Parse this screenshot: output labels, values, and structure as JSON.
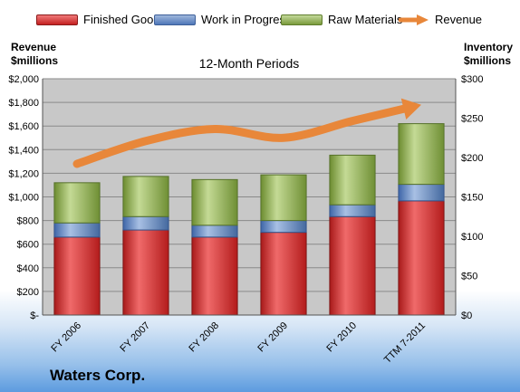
{
  "legend": {
    "finished_goods": "Finished Goods",
    "work_in_progress": "Work in Progress",
    "raw_materials": "Raw Materials",
    "revenue": "Revenue"
  },
  "left_axis_title": {
    "line1": "Revenue",
    "line2": "$millions"
  },
  "right_axis_title": {
    "line1": "Inventory",
    "line2": "$millions"
  },
  "company": "Waters Corp.",
  "colors": {
    "finished_goods": "#c42020",
    "work_in_progress": "#4f77b8",
    "raw_materials": "#7a9a3b",
    "revenue": "#e8873a",
    "plot_background": "#c8c8c8"
  },
  "chart_data": {
    "type": "bar",
    "stacked": true,
    "title": "12-Month Periods",
    "categories": [
      "FY 2006",
      "FY 2007",
      "FY 2008",
      "FY 2009",
      "FY 2010",
      "TTM 7-2011"
    ],
    "series": [
      {
        "name": "Finished Goods",
        "axis": "right",
        "values": [
          99,
          108,
          99,
          105,
          125,
          145
        ]
      },
      {
        "name": "Work in Progress",
        "axis": "right",
        "values": [
          18,
          17,
          15,
          15,
          15,
          21
        ]
      },
      {
        "name": "Raw Materials",
        "axis": "right",
        "values": [
          51,
          51,
          58,
          58,
          63,
          77
        ]
      },
      {
        "name": "Revenue",
        "type": "line",
        "axis": "left",
        "values": [
          1280,
          1473,
          1575,
          1500,
          1643,
          1780
        ]
      }
    ],
    "ylim_left": [
      0,
      2000
    ],
    "yticks_left": [
      "$-",
      "$200",
      "$400",
      "$600",
      "$800",
      "$1,000",
      "$1,200",
      "$1,400",
      "$1,600",
      "$1,800",
      "$2,000"
    ],
    "ylim_right": [
      0,
      300
    ],
    "yticks_right": [
      "$0",
      "$50",
      "$100",
      "$150",
      "$200",
      "$250",
      "$300"
    ],
    "grid": true
  }
}
